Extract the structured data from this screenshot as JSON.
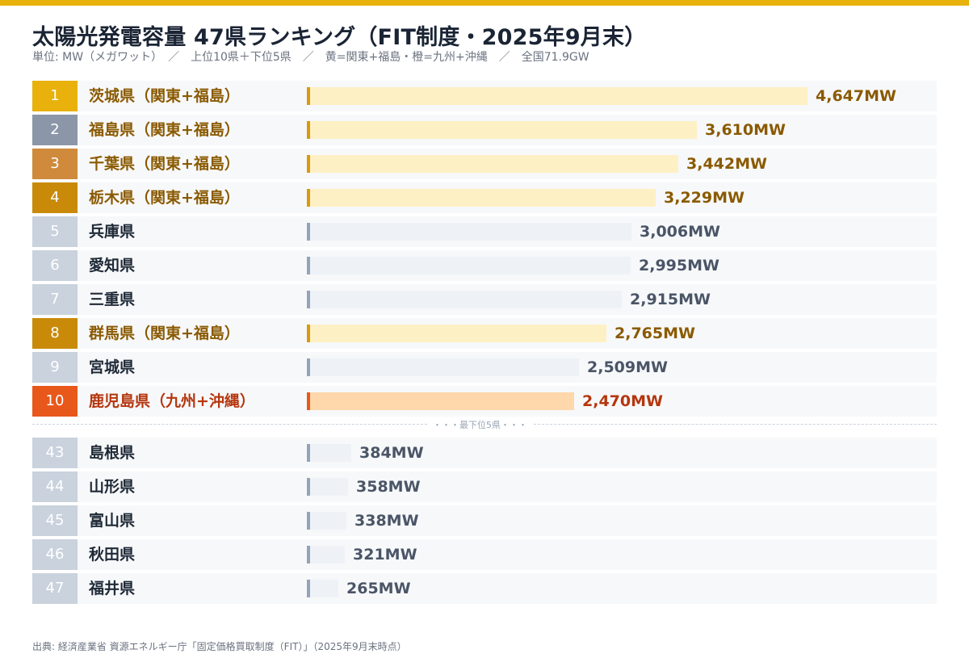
{
  "header": {
    "title": "太陽光発電容量 47県ランキング（FIT制度・2025年9月末）",
    "subtitle": "単位: MW（メガワット）　／　上位10県＋下位5県　／　黄=関東+福島・橙=九州+沖縄　／　全国71.9GW"
  },
  "separator_label": "・・・最下位5県・・・",
  "source": "出典: 経済産業省 資源エネルギー庁「固定価格買取制度（FIT）」（2025年9月末時点）",
  "colors": {
    "accent_top": "#e8b10c",
    "group_kanto": "#c98a0a",
    "group_kyushu": "#e8581a",
    "other": "#94a3b8"
  },
  "chart_data": {
    "type": "bar",
    "orientation": "horizontal",
    "unit": "MW",
    "rows": [
      {
        "rank": "1",
        "name": "茨城県（関東+福島）",
        "value": 4647,
        "label": "4,647MW",
        "group": "kanto",
        "rank_color": "#e8b10c"
      },
      {
        "rank": "2",
        "name": "福島県（関東+福島）",
        "value": 3610,
        "label": "3,610MW",
        "group": "kanto",
        "rank_color": "#8b97a8"
      },
      {
        "rank": "3",
        "name": "千葉県（関東+福島）",
        "value": 3442,
        "label": "3,442MW",
        "group": "kanto",
        "rank_color": "#cf8a3c"
      },
      {
        "rank": "4",
        "name": "栃木県（関東+福島）",
        "value": 3229,
        "label": "3,229MW",
        "group": "kanto",
        "rank_color": "#c98a0a"
      },
      {
        "rank": "5",
        "name": "兵庫県",
        "value": 3006,
        "label": "3,006MW",
        "group": "other",
        "rank_color": "#c9d2dd"
      },
      {
        "rank": "6",
        "name": "愛知県",
        "value": 2995,
        "label": "2,995MW",
        "group": "other",
        "rank_color": "#c9d2dd"
      },
      {
        "rank": "7",
        "name": "三重県",
        "value": 2915,
        "label": "2,915MW",
        "group": "other",
        "rank_color": "#c9d2dd"
      },
      {
        "rank": "8",
        "name": "群馬県（関東+福島）",
        "value": 2765,
        "label": "2,765MW",
        "group": "kanto",
        "rank_color": "#c98a0a"
      },
      {
        "rank": "9",
        "name": "宮城県",
        "value": 2509,
        "label": "2,509MW",
        "group": "other",
        "rank_color": "#c9d2dd"
      },
      {
        "rank": "10",
        "name": "鹿児島県（九州+沖縄）",
        "value": 2470,
        "label": "2,470MW",
        "group": "kyushu",
        "rank_color": "#e8581a"
      },
      {
        "rank": "43",
        "name": "島根県",
        "value": 384,
        "label": "384MW",
        "group": "other",
        "rank_color": "#c9d2dd"
      },
      {
        "rank": "44",
        "name": "山形県",
        "value": 358,
        "label": "358MW",
        "group": "other",
        "rank_color": "#c9d2dd"
      },
      {
        "rank": "45",
        "name": "富山県",
        "value": 338,
        "label": "338MW",
        "group": "other",
        "rank_color": "#c9d2dd"
      },
      {
        "rank": "46",
        "name": "秋田県",
        "value": 321,
        "label": "321MW",
        "group": "other",
        "rank_color": "#c9d2dd"
      },
      {
        "rank": "47",
        "name": "福井県",
        "value": 265,
        "label": "265MW",
        "group": "other",
        "rank_color": "#c9d2dd"
      }
    ]
  }
}
